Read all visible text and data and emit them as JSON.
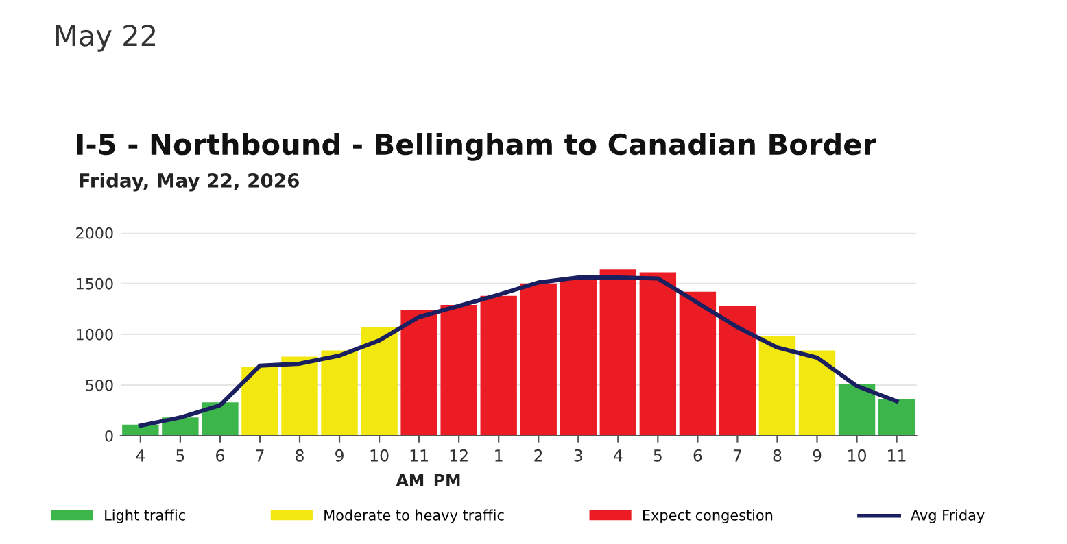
{
  "chart_data": {
    "type": "bar",
    "title": "May 22",
    "subtitle": "I-5 - Northbound - Bellingham to Canadian Border",
    "annotations": [
      "Friday, May 22, 2026",
      "AM",
      "PM"
    ],
    "categories": [
      "4",
      "5",
      "6",
      "7",
      "8",
      "9",
      "10",
      "11",
      "12",
      "1",
      "2",
      "3",
      "4",
      "5",
      "6",
      "7",
      "8",
      "9",
      "10",
      "11"
    ],
    "series": [
      {
        "name": "Light traffic",
        "color": "#3cb54a",
        "values": [
          110,
          180,
          330,
          null,
          null,
          null,
          null,
          null,
          null,
          null,
          null,
          null,
          null,
          null,
          null,
          null,
          null,
          null,
          510,
          360
        ]
      },
      {
        "name": "Moderate to heavy traffic",
        "color": "#f2e80f",
        "values": [
          null,
          null,
          null,
          680,
          780,
          840,
          1070,
          null,
          null,
          null,
          null,
          null,
          null,
          null,
          null,
          null,
          980,
          840,
          null,
          null
        ]
      },
      {
        "name": "Expect congestion",
        "color": "#ec1c24",
        "values": [
          null,
          null,
          null,
          null,
          null,
          null,
          null,
          1240,
          1290,
          1380,
          1500,
          1540,
          1640,
          1610,
          1420,
          1280,
          null,
          null,
          null,
          null
        ]
      },
      {
        "name": "Avg Friday",
        "type": "line",
        "color": "#1a1f60",
        "values": [
          100,
          180,
          300,
          690,
          710,
          790,
          940,
          1170,
          1280,
          1390,
          1510,
          1560,
          1560,
          1550,
          1310,
          1070,
          870,
          770,
          490,
          340
        ]
      }
    ],
    "ylim": [
      0,
      2000
    ],
    "yticks": [
      0,
      500,
      1000,
      1500,
      2000
    ],
    "grid": "y",
    "legend": "bottom"
  }
}
